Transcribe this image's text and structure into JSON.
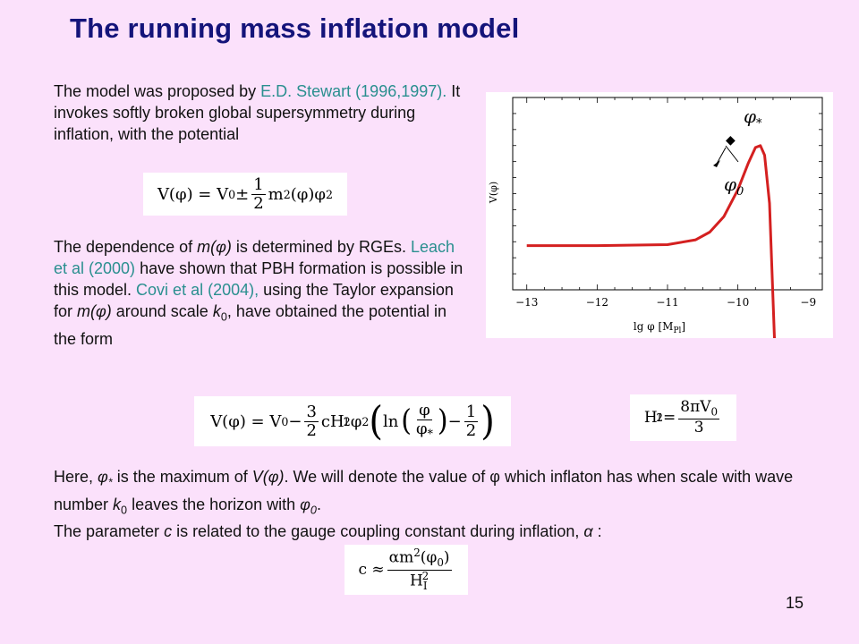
{
  "slide": {
    "title": "The running mass inflation model",
    "number": "15"
  },
  "para1": {
    "t1": "The model was proposed by ",
    "link1": "E.D. Stewart (1996,1997).",
    "t2": " It invokes softly broken global supersymmetry during inflation, with the potential"
  },
  "para2": {
    "t1": "The dependence of ",
    "m_phi": "m(φ)",
    "t2": " is determined by RGEs. ",
    "link1": "Leach et al (2000)",
    "t3": " have shown that PBH formation is possible in this model. ",
    "link2": "Covi et al (2004),",
    "t4": " using the Taylor expansion for ",
    "m_phi2": "m(φ)",
    "t5": " around scale ",
    "k": "k",
    "k_sub": "0",
    "t6": ", have obtained the potential in the form"
  },
  "para3": {
    "line1_a": "Here, ",
    "phi_star": "φ",
    "star": "*",
    "line1_b": " is the maximum of ",
    "v_phi": "V(φ)",
    "line1_c": ". We will denote the value of φ which inflaton has when scale with wave number ",
    "k": "k",
    "k_sub": "0",
    "line1_d": " leaves the horizon with ",
    "phi0": "φ",
    "phi0_sub": "0",
    "line1_e": ".",
    "line2_a": "The parameter ",
    "c": "c",
    "line2_b": " is related to the gauge coupling constant during inflation, ",
    "alpha": "α",
    "line2_c": " :"
  },
  "formulas": {
    "f1": {
      "lhs": "V(φ) = V",
      "lhs_sub": "0",
      "pm": " ± ",
      "num": "1",
      "den": "2",
      "rhs": "m",
      "rhs_sup": "2",
      "rhs2": "(φ)φ",
      "rhs2_sup": "2"
    },
    "f2": {
      "a": "V(φ) = V",
      "a_sub": "0",
      "b": " − ",
      "num": "3",
      "den": "2",
      "c": "cH",
      "c_sub": "I",
      "c_sup": "2",
      "d": "φ",
      "d_sup": "2",
      "lp": "(",
      "ln": "ln",
      "lp2": "(",
      "fnum": "φ",
      "fden": "φ",
      "fden_sub": "*",
      "rp2": ")",
      "minus": " − ",
      "hnum": "1",
      "hden": "2",
      "rp": ")"
    },
    "f3": {
      "lhs": "H",
      "lhs_sub": "I",
      "lhs_sup": "2",
      "eq": " = ",
      "num": "8πV",
      "num_sub": "0",
      "den": "3"
    },
    "f4": {
      "lhs": "c ≈ ",
      "num": "αm",
      "num_sup": "2",
      "num2": "(φ",
      "num2_sub": "0",
      "num3": ")",
      "den": "H",
      "den_sub": "I",
      "den_sup": "2"
    }
  },
  "chart_data": {
    "type": "line",
    "xlabel": "lg φ [M",
    "xlabel_sub": "Pl",
    "xlabel_end": "]",
    "ylabel": "V(φ)",
    "xlim": [
      -13.2,
      -8.8
    ],
    "ticks": [
      "−13",
      "−12",
      "−11",
      "−10",
      "−9"
    ],
    "tick_values": [
      -13,
      -12,
      -11,
      -10,
      -9
    ],
    "annotations": {
      "phi_star": "φ",
      "phi_star_sub": "*",
      "phi0": "φ",
      "phi0_sub": "0"
    },
    "line_color": "#d42020",
    "series": [
      {
        "x": [
          -13.0,
          -12.0,
          -11.0,
          -10.6,
          -10.4,
          -10.2,
          -10.0,
          -9.85,
          -9.75,
          -9.68,
          -9.62,
          -9.55,
          -9.48
        ],
        "y": [
          0.23,
          0.23,
          0.235,
          0.26,
          0.3,
          0.38,
          0.52,
          0.66,
          0.74,
          0.75,
          0.7,
          0.45,
          -0.3
        ]
      }
    ]
  }
}
